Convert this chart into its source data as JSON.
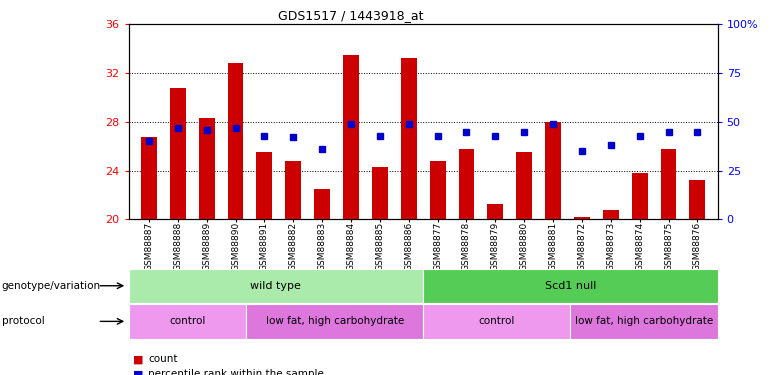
{
  "title": "GDS1517 / 1443918_at",
  "samples": [
    "GSM88887",
    "GSM88888",
    "GSM88889",
    "GSM88890",
    "GSM88891",
    "GSM88882",
    "GSM88883",
    "GSM88884",
    "GSM88885",
    "GSM88886",
    "GSM88877",
    "GSM88878",
    "GSM88879",
    "GSM88880",
    "GSM88881",
    "GSM88872",
    "GSM88873",
    "GSM88874",
    "GSM88875",
    "GSM88876"
  ],
  "bar_values": [
    26.8,
    30.8,
    28.3,
    32.8,
    25.5,
    24.8,
    22.5,
    33.5,
    24.3,
    33.2,
    24.8,
    25.8,
    21.3,
    25.5,
    28.0,
    20.2,
    20.8,
    23.8,
    25.8,
    23.2
  ],
  "blue_pct": [
    40,
    47,
    46,
    47,
    43,
    42,
    36,
    49,
    43,
    49,
    43,
    45,
    43,
    45,
    49,
    35,
    38,
    43,
    45,
    45
  ],
  "bar_color": "#cc0000",
  "blue_color": "#0000cc",
  "ylim_left": [
    20,
    36
  ],
  "ylim_right": [
    0,
    100
  ],
  "yticks_left": [
    20,
    24,
    28,
    32,
    36
  ],
  "yticks_right": [
    0,
    25,
    50,
    75,
    100
  ],
  "ytick_labels_right": [
    "0",
    "25",
    "50",
    "75",
    "100%"
  ],
  "grid_values": [
    24,
    28,
    32
  ],
  "genotype_groups": [
    {
      "label": "wild type",
      "start": 0,
      "end": 10,
      "color": "#aaeaaa"
    },
    {
      "label": "Scd1 null",
      "start": 10,
      "end": 20,
      "color": "#55cc55"
    }
  ],
  "protocol_groups": [
    {
      "label": "control",
      "start": 0,
      "end": 4,
      "color": "#ee99ee"
    },
    {
      "label": "low fat, high carbohydrate",
      "start": 4,
      "end": 10,
      "color": "#dd77dd"
    },
    {
      "label": "control",
      "start": 10,
      "end": 15,
      "color": "#ee99ee"
    },
    {
      "label": "low fat, high carbohydrate",
      "start": 15,
      "end": 20,
      "color": "#dd77dd"
    }
  ],
  "legend_count_label": "count",
  "legend_pct_label": "percentile rank within the sample",
  "genotype_label": "genotype/variation",
  "protocol_label": "protocol",
  "bar_width": 0.55,
  "xtick_bg_color": "#cccccc"
}
